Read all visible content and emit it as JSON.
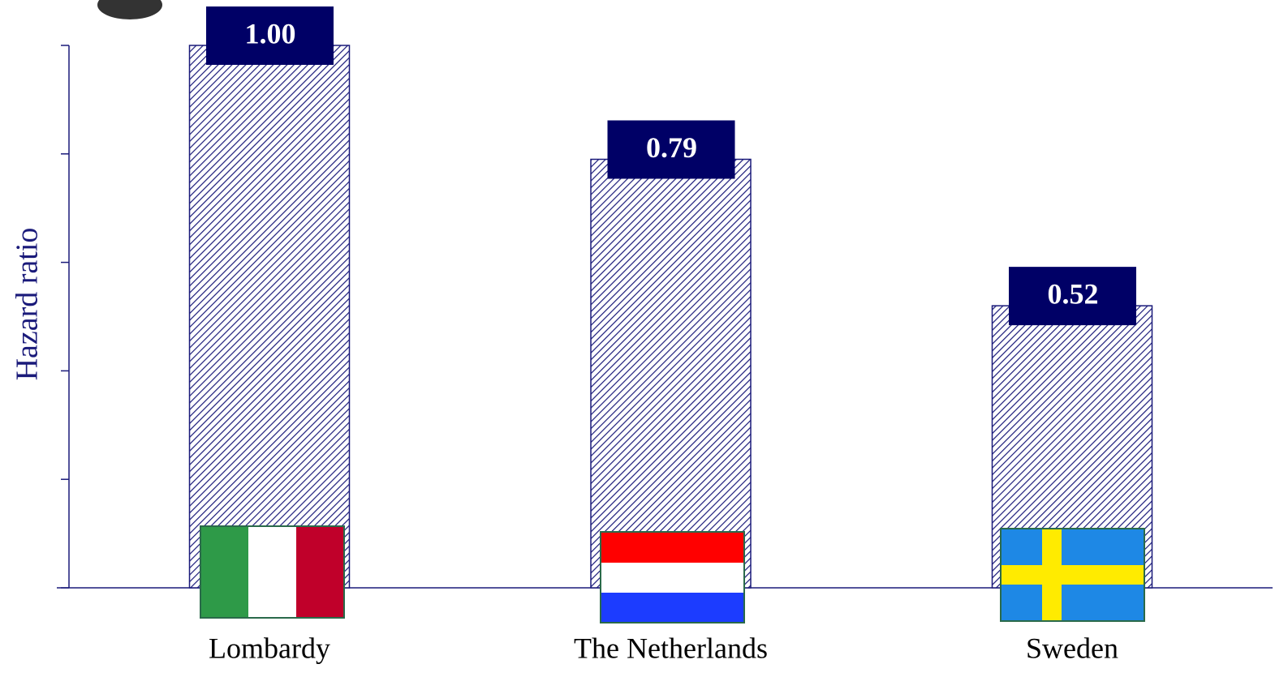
{
  "chart_data": {
    "type": "bar",
    "ylabel": "Hazard ratio",
    "categories": [
      "Lombardy",
      "The Netherlands",
      "Sweden"
    ],
    "values": [
      1.0,
      0.79,
      0.52
    ],
    "value_labels": [
      "1.00",
      "0.79",
      "0.52"
    ],
    "color": "#1a1a7a",
    "ylim": [
      0,
      1
    ],
    "yticks": [
      0,
      0.2,
      0.4,
      0.6,
      0.8,
      1.0
    ]
  }
}
